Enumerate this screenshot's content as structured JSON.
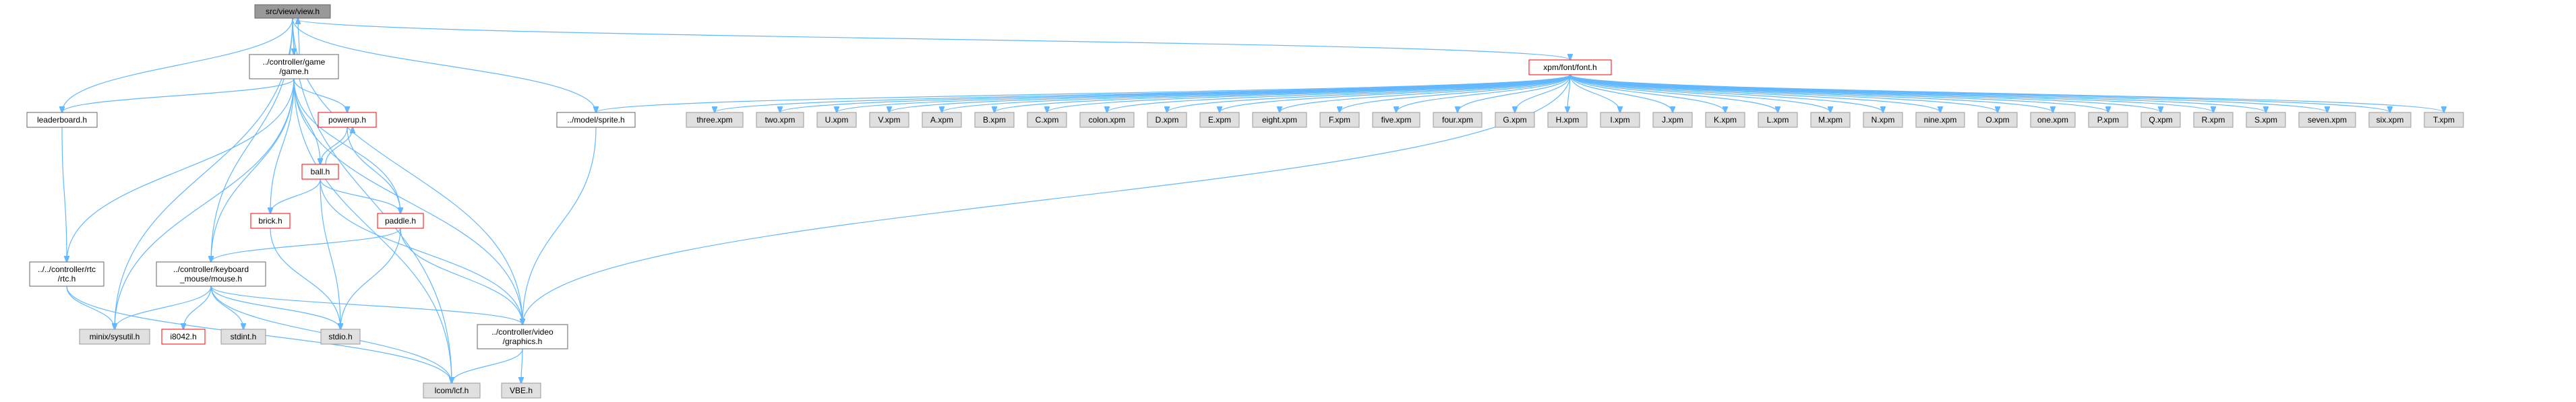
{
  "colors": {
    "edge": "#63b8ff",
    "root_fill": "#999999",
    "root_border": "#666666",
    "documented_fill": "#ffffff",
    "documented_border": "#666666",
    "incomplete_fill": "#ffffff",
    "incomplete_border": "#ff0000",
    "external_fill": "#e0e0e0",
    "external_border": "#999999"
  },
  "nodes": [
    {
      "id": "view",
      "label": [
        "src/view/view.h"
      ],
      "kind": "root"
    },
    {
      "id": "game",
      "label": [
        "../controller/game",
        "/game.h"
      ],
      "kind": "documented"
    },
    {
      "id": "leaderboard",
      "label": [
        "leaderboard.h"
      ],
      "kind": "documented"
    },
    {
      "id": "powerup",
      "label": [
        "powerup.h"
      ],
      "kind": "incomplete"
    },
    {
      "id": "ball",
      "label": [
        "ball.h"
      ],
      "kind": "incomplete"
    },
    {
      "id": "brick",
      "label": [
        "brick.h"
      ],
      "kind": "incomplete"
    },
    {
      "id": "paddle",
      "label": [
        "paddle.h"
      ],
      "kind": "incomplete"
    },
    {
      "id": "rtc",
      "label": [
        "../../controller/rtc",
        "/rtc.h"
      ],
      "kind": "documented"
    },
    {
      "id": "mouse",
      "label": [
        "../controller/keyboard",
        "_mouse/mouse.h"
      ],
      "kind": "documented"
    },
    {
      "id": "sysutil",
      "label": [
        "minix/sysutil.h"
      ],
      "kind": "external"
    },
    {
      "id": "i8042",
      "label": [
        "i8042.h"
      ],
      "kind": "incomplete"
    },
    {
      "id": "stdint",
      "label": [
        "stdint.h"
      ],
      "kind": "external"
    },
    {
      "id": "stdio",
      "label": [
        "stdio.h"
      ],
      "kind": "external"
    },
    {
      "id": "graphics",
      "label": [
        "../controller/video",
        "/graphics.h"
      ],
      "kind": "documented"
    },
    {
      "id": "lcom",
      "label": [
        "lcom/lcf.h"
      ],
      "kind": "external"
    },
    {
      "id": "vbe",
      "label": [
        "VBE.h"
      ],
      "kind": "external"
    },
    {
      "id": "sprite",
      "label": [
        "../model/sprite.h"
      ],
      "kind": "documented"
    },
    {
      "id": "font",
      "label": [
        "xpm/font/font.h"
      ],
      "kind": "incomplete"
    },
    {
      "id": "x_three",
      "label": [
        "three.xpm"
      ],
      "kind": "external"
    },
    {
      "id": "x_two",
      "label": [
        "two.xpm"
      ],
      "kind": "external"
    },
    {
      "id": "x_U",
      "label": [
        "U.xpm"
      ],
      "kind": "external"
    },
    {
      "id": "x_V",
      "label": [
        "V.xpm"
      ],
      "kind": "external"
    },
    {
      "id": "x_A",
      "label": [
        "A.xpm"
      ],
      "kind": "external"
    },
    {
      "id": "x_B",
      "label": [
        "B.xpm"
      ],
      "kind": "external"
    },
    {
      "id": "x_C",
      "label": [
        "C.xpm"
      ],
      "kind": "external"
    },
    {
      "id": "x_colon",
      "label": [
        "colon.xpm"
      ],
      "kind": "external"
    },
    {
      "id": "x_D",
      "label": [
        "D.xpm"
      ],
      "kind": "external"
    },
    {
      "id": "x_E",
      "label": [
        "E.xpm"
      ],
      "kind": "external"
    },
    {
      "id": "x_eight",
      "label": [
        "eight.xpm"
      ],
      "kind": "external"
    },
    {
      "id": "x_F",
      "label": [
        "F.xpm"
      ],
      "kind": "external"
    },
    {
      "id": "x_five",
      "label": [
        "five.xpm"
      ],
      "kind": "external"
    },
    {
      "id": "x_four",
      "label": [
        "four.xpm"
      ],
      "kind": "external"
    },
    {
      "id": "x_G",
      "label": [
        "G.xpm"
      ],
      "kind": "external"
    },
    {
      "id": "x_H",
      "label": [
        "H.xpm"
      ],
      "kind": "external"
    },
    {
      "id": "x_I",
      "label": [
        "I.xpm"
      ],
      "kind": "external"
    },
    {
      "id": "x_J",
      "label": [
        "J.xpm"
      ],
      "kind": "external"
    },
    {
      "id": "x_K",
      "label": [
        "K.xpm"
      ],
      "kind": "external"
    },
    {
      "id": "x_L",
      "label": [
        "L.xpm"
      ],
      "kind": "external"
    },
    {
      "id": "x_M",
      "label": [
        "M.xpm"
      ],
      "kind": "external"
    },
    {
      "id": "x_N",
      "label": [
        "N.xpm"
      ],
      "kind": "external"
    },
    {
      "id": "x_nine",
      "label": [
        "nine.xpm"
      ],
      "kind": "external"
    },
    {
      "id": "x_O",
      "label": [
        "O.xpm"
      ],
      "kind": "external"
    },
    {
      "id": "x_one",
      "label": [
        "one.xpm"
      ],
      "kind": "external"
    },
    {
      "id": "x_P",
      "label": [
        "P.xpm"
      ],
      "kind": "external"
    },
    {
      "id": "x_Q",
      "label": [
        "Q.xpm"
      ],
      "kind": "external"
    },
    {
      "id": "x_R",
      "label": [
        "R.xpm"
      ],
      "kind": "external"
    },
    {
      "id": "x_S",
      "label": [
        "S.xpm"
      ],
      "kind": "external"
    },
    {
      "id": "x_seven",
      "label": [
        "seven.xpm"
      ],
      "kind": "external"
    },
    {
      "id": "x_six",
      "label": [
        "six.xpm"
      ],
      "kind": "external"
    },
    {
      "id": "x_T",
      "label": [
        "T.xpm"
      ],
      "kind": "external"
    }
  ],
  "edges": [
    [
      "view",
      "game"
    ],
    [
      "view",
      "leaderboard"
    ],
    [
      "view",
      "sysutil"
    ],
    [
      "view",
      "mouse"
    ],
    [
      "view",
      "graphics"
    ],
    [
      "view",
      "lcom"
    ],
    [
      "view",
      "sprite"
    ],
    [
      "view",
      "font"
    ],
    [
      "game",
      "view"
    ],
    [
      "game",
      "leaderboard"
    ],
    [
      "game",
      "powerup"
    ],
    [
      "game",
      "ball"
    ],
    [
      "game",
      "brick"
    ],
    [
      "game",
      "paddle"
    ],
    [
      "game",
      "rtc"
    ],
    [
      "game",
      "mouse"
    ],
    [
      "game",
      "sysutil"
    ],
    [
      "game",
      "graphics"
    ],
    [
      "game",
      "lcom"
    ],
    [
      "leaderboard",
      "rtc"
    ],
    [
      "powerup",
      "ball"
    ],
    [
      "powerup",
      "paddle"
    ],
    [
      "ball",
      "powerup"
    ],
    [
      "ball",
      "brick"
    ],
    [
      "ball",
      "paddle"
    ],
    [
      "ball",
      "stdio"
    ],
    [
      "ball",
      "graphics"
    ],
    [
      "brick",
      "stdio"
    ],
    [
      "paddle",
      "mouse"
    ],
    [
      "paddle",
      "stdio"
    ],
    [
      "paddle",
      "graphics"
    ],
    [
      "rtc",
      "sysutil"
    ],
    [
      "rtc",
      "lcom"
    ],
    [
      "mouse",
      "sysutil"
    ],
    [
      "mouse",
      "i8042"
    ],
    [
      "mouse",
      "stdint"
    ],
    [
      "mouse",
      "stdio"
    ],
    [
      "mouse",
      "lcom"
    ],
    [
      "mouse",
      "graphics"
    ],
    [
      "graphics",
      "lcom"
    ],
    [
      "graphics",
      "vbe"
    ],
    [
      "sprite",
      "graphics"
    ],
    [
      "font",
      "sprite"
    ],
    [
      "font",
      "graphics"
    ],
    [
      "font",
      "x_three"
    ],
    [
      "font",
      "x_two"
    ],
    [
      "font",
      "x_U"
    ],
    [
      "font",
      "x_V"
    ],
    [
      "font",
      "x_A"
    ],
    [
      "font",
      "x_B"
    ],
    [
      "font",
      "x_C"
    ],
    [
      "font",
      "x_colon"
    ],
    [
      "font",
      "x_D"
    ],
    [
      "font",
      "x_E"
    ],
    [
      "font",
      "x_eight"
    ],
    [
      "font",
      "x_F"
    ],
    [
      "font",
      "x_five"
    ],
    [
      "font",
      "x_four"
    ],
    [
      "font",
      "x_G"
    ],
    [
      "font",
      "x_H"
    ],
    [
      "font",
      "x_I"
    ],
    [
      "font",
      "x_J"
    ],
    [
      "font",
      "x_K"
    ],
    [
      "font",
      "x_L"
    ],
    [
      "font",
      "x_M"
    ],
    [
      "font",
      "x_N"
    ],
    [
      "font",
      "x_nine"
    ],
    [
      "font",
      "x_O"
    ],
    [
      "font",
      "x_one"
    ],
    [
      "font",
      "x_P"
    ],
    [
      "font",
      "x_Q"
    ],
    [
      "font",
      "x_R"
    ],
    [
      "font",
      "x_S"
    ],
    [
      "font",
      "x_seven"
    ],
    [
      "font",
      "x_six"
    ],
    [
      "font",
      "x_T"
    ]
  ]
}
